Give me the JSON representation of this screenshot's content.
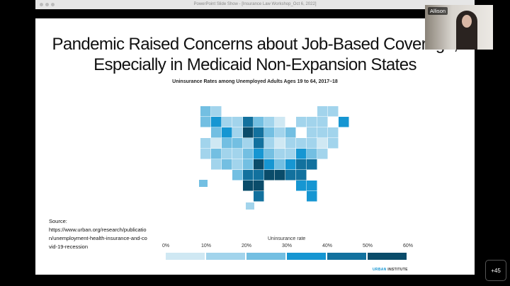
{
  "window": {
    "title": "PowerPoint Slide Show - [Insurance Law Workshop_Oct 6, 2022]"
  },
  "slide": {
    "title_line1": "Pandemic Raised Concerns about Job-Based Coverage,",
    "title_line2": "Especially in Medicaid Non-Expansion States",
    "subtitle": "Uninsurance Rates among Unemployed Adults Ages 19 to 64, 2017–18",
    "source_label": "Source:",
    "source_url": "https://www.urban.org/research/publication/unemployment-health-insurance-and-covid-19-recession",
    "legend_title": "Uninsurance rate",
    "legend_ticks": [
      "0%",
      "10%",
      "20%",
      "30%",
      "40%",
      "50%",
      "60%"
    ],
    "legend_colors": [
      "#cfe8f3",
      "#a2d4ec",
      "#73bfe2",
      "#1696d2",
      "#12719e",
      "#0a4c6a"
    ],
    "brand_1": "URBAN",
    "brand_2": "INSTITUTE"
  },
  "video": {
    "participant": "Allison"
  },
  "participants_more": "+45"
}
